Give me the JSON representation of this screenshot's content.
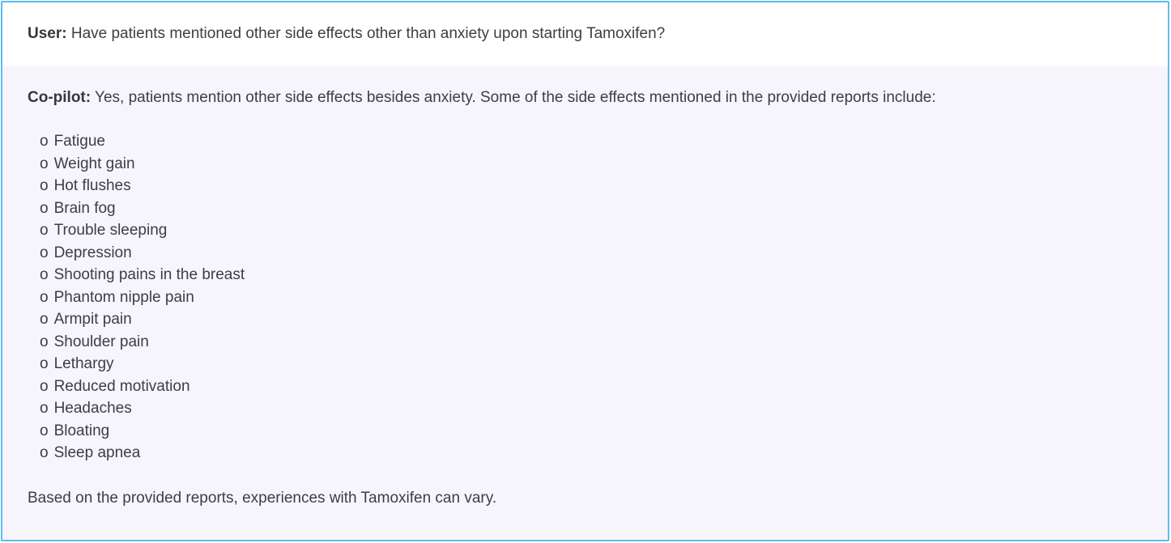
{
  "user_message": {
    "label": "User:",
    "text": "Have patients mentioned other side effects other than anxiety upon starting Tamoxifen?"
  },
  "copilot_message": {
    "label": "Co-pilot:",
    "intro": "Yes, patients mention other side effects besides anxiety. Some of the side effects mentioned in the provided reports include:",
    "bullet": "o",
    "side_effects": [
      "Fatigue",
      "Weight gain",
      "Hot flushes",
      "Brain fog",
      "Trouble sleeping",
      "Depression",
      "Shooting pains in the breast",
      "Phantom nipple pain",
      "Armpit pain",
      "Shoulder pain",
      "Lethargy",
      "Reduced motivation",
      "Headaches",
      "Bloating",
      "Sleep apnea"
    ],
    "outro": "Based on the provided reports, experiences with Tamoxifen can vary."
  },
  "colors": {
    "border": "#5cbcee",
    "user_bg": "#ffffff",
    "copilot_bg": "#f5f5fb",
    "text": "#3d3d47"
  }
}
